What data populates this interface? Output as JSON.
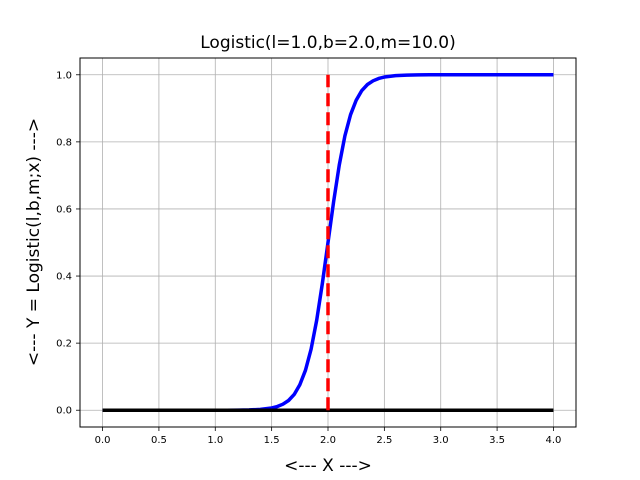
{
  "chart_data": {
    "type": "line",
    "title": "Logistic(l=1.0,b=2.0,m=10.0)",
    "xlabel": "<--- X --->",
    "ylabel": "<--- Y = Logistic(l,b,m;x) --->",
    "xlim": [
      -0.2,
      4.2
    ],
    "ylim": [
      -0.05,
      1.05
    ],
    "xticks": [
      0.0,
      0.5,
      1.0,
      1.5,
      2.0,
      2.5,
      3.0,
      3.5,
      4.0
    ],
    "xtick_labels": [
      "0.0",
      "0.5",
      "1.0",
      "1.5",
      "2.0",
      "2.5",
      "3.0",
      "3.5",
      "4.0"
    ],
    "yticks": [
      0.0,
      0.2,
      0.4,
      0.6,
      0.8,
      1.0
    ],
    "ytick_labels": [
      "0.0",
      "0.2",
      "0.4",
      "0.6",
      "0.8",
      "1.0"
    ],
    "grid": true,
    "series": [
      {
        "color": "#0000ff",
        "style": "solid",
        "x": [
          0.0,
          0.2,
          0.4,
          0.6,
          0.8,
          1.0,
          1.1,
          1.2,
          1.3,
          1.4,
          1.5,
          1.55,
          1.6,
          1.65,
          1.7,
          1.75,
          1.8,
          1.85,
          1.9,
          1.95,
          2.0,
          2.05,
          2.1,
          2.15,
          2.2,
          2.25,
          2.3,
          2.35,
          2.4,
          2.45,
          2.5,
          2.6,
          2.7,
          2.8,
          2.9,
          3.0,
          3.2,
          3.4,
          3.6,
          3.8,
          4.0
        ],
        "values": [
          0.0,
          0.0,
          0.0,
          0.0,
          0.0,
          0.0,
          0.0001,
          0.0003,
          0.0009,
          0.0025,
          0.0067,
          0.011,
          0.018,
          0.029,
          0.047,
          0.076,
          0.119,
          0.182,
          0.269,
          0.378,
          0.5,
          0.622,
          0.731,
          0.818,
          0.881,
          0.924,
          0.953,
          0.971,
          0.982,
          0.989,
          0.9933,
          0.9975,
          0.9991,
          0.9997,
          0.9999,
          1.0,
          1.0,
          1.0,
          1.0,
          1.0,
          1.0
        ]
      },
      {
        "color": "#000000",
        "style": "solid",
        "x": [
          0.0,
          4.0
        ],
        "values": [
          0.0,
          0.0
        ]
      },
      {
        "color": "#ff0000",
        "style": "dashed",
        "x": [
          2.0,
          2.0
        ],
        "values": [
          0.0,
          1.0
        ]
      }
    ]
  }
}
